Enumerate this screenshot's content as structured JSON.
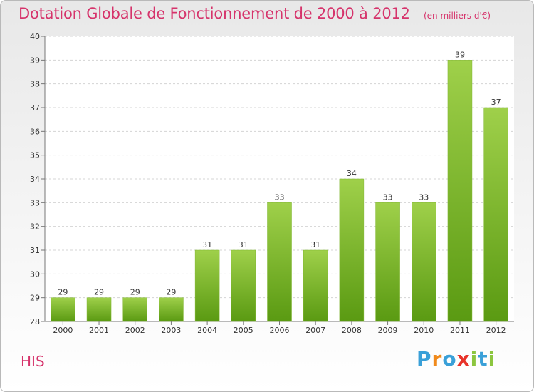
{
  "chart_data": {
    "type": "bar",
    "title": "Dotation Globale de Fonctionnement de 2000 à 2012",
    "subtitle": "(en milliers d'€)",
    "categories": [
      "2000",
      "2001",
      "2002",
      "2003",
      "2004",
      "2005",
      "2006",
      "2007",
      "2008",
      "2009",
      "2010",
      "2011",
      "2012"
    ],
    "values": [
      29,
      29,
      29,
      29,
      31,
      31,
      33,
      31,
      34,
      33,
      33,
      39,
      37
    ],
    "ylim": [
      28,
      40
    ],
    "yticks": [
      28,
      29,
      30,
      31,
      32,
      33,
      34,
      35,
      36,
      37,
      38,
      39,
      40
    ],
    "grid": true,
    "colors": {
      "bar_top": "#9fd04a",
      "bar_bottom": "#5a9a12",
      "title": "#d6336b"
    }
  },
  "footer": {
    "city": "HIS",
    "logo_text": "Proxiti"
  }
}
